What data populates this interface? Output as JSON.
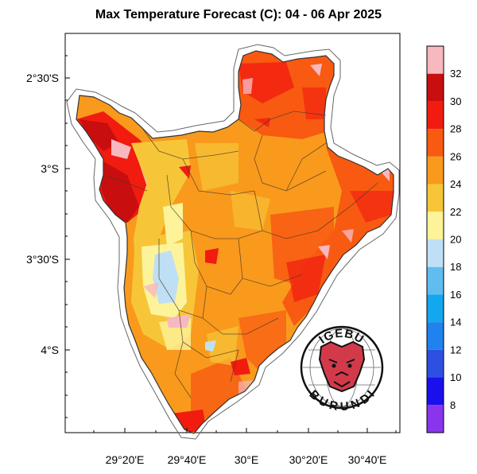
{
  "title": "Max Temperature Forecast (C): 04 - 06 Apr 2025",
  "map": {
    "lat_ticks": [
      "2°30'S",
      "3°S",
      "3°30'S",
      "4°S"
    ],
    "lon_ticks": [
      "29°20'E",
      "29°40'E",
      "30°E",
      "30°20'E",
      "30°40'E"
    ]
  },
  "colorbar": {
    "labels": [
      "32",
      "30",
      "28",
      "26",
      "24",
      "22",
      "20",
      "18",
      "16",
      "14",
      "12",
      "10",
      "8"
    ],
    "colors": [
      "#f8b8bf",
      "#c80e0e",
      "#f11b10",
      "#f85a12",
      "#f99a1c",
      "#f6c638",
      "#fdf39a",
      "#bfe0f4",
      "#61bdf0",
      "#12a7ef",
      "#1f82ed",
      "#2d50e3",
      "#1a10ee",
      "#8b34ee"
    ]
  },
  "logo": {
    "top_text": "IGEBU",
    "bottom_text": "BURUNDI"
  }
}
